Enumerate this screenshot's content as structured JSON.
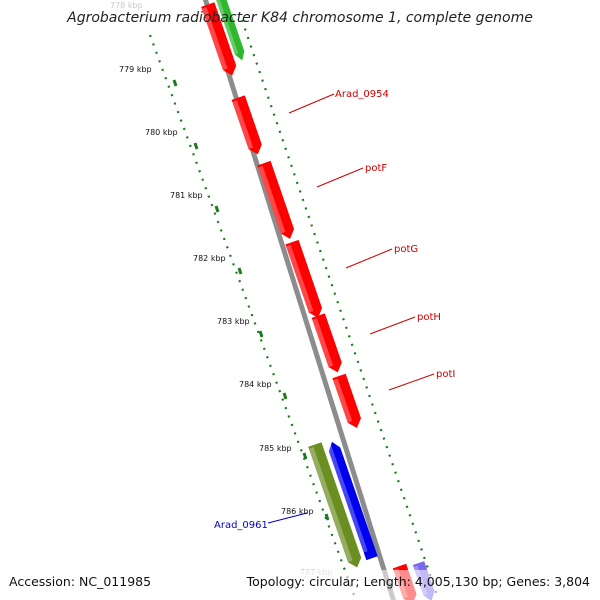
{
  "map": {
    "title": "Agrobacterium radiobacter K84 chromosome 1, complete genome",
    "accession_text": "Accession: NC_011985",
    "summary_text": "Topology: circular; Length: 4,005,130 bp; Genes: 3,804",
    "colors": {
      "backbone": "#8c8c8c",
      "tick": "#1d7a1d",
      "forward_gene": "#ff0000",
      "reverse_gene": "#0000ee",
      "olive_feature": "#6b8e23",
      "green_feature": "#2eb82e",
      "purple_feature": "#7b68ee",
      "forward_label": "#cc0000",
      "reverse_label": "#0000cc"
    },
    "ruler": [
      {
        "label": "778 kbp",
        "faded": true
      },
      {
        "label": "779 kbp"
      },
      {
        "label": "780 kbp"
      },
      {
        "label": "781 kbp"
      },
      {
        "label": "782 kbp"
      },
      {
        "label": "783 kbp"
      },
      {
        "label": "784 kbp"
      },
      {
        "label": "785 kbp"
      },
      {
        "label": "786 kbp"
      },
      {
        "label": "787 kbp",
        "faded": true
      }
    ],
    "gene_labels": [
      {
        "name": "Arad_0954",
        "strand": "forward"
      },
      {
        "name": "potF",
        "strand": "forward"
      },
      {
        "name": "potG",
        "strand": "forward"
      },
      {
        "name": "potH",
        "strand": "forward"
      },
      {
        "name": "potI",
        "strand": "forward"
      },
      {
        "name": "Arad_0961",
        "strand": "reverse"
      }
    ]
  }
}
